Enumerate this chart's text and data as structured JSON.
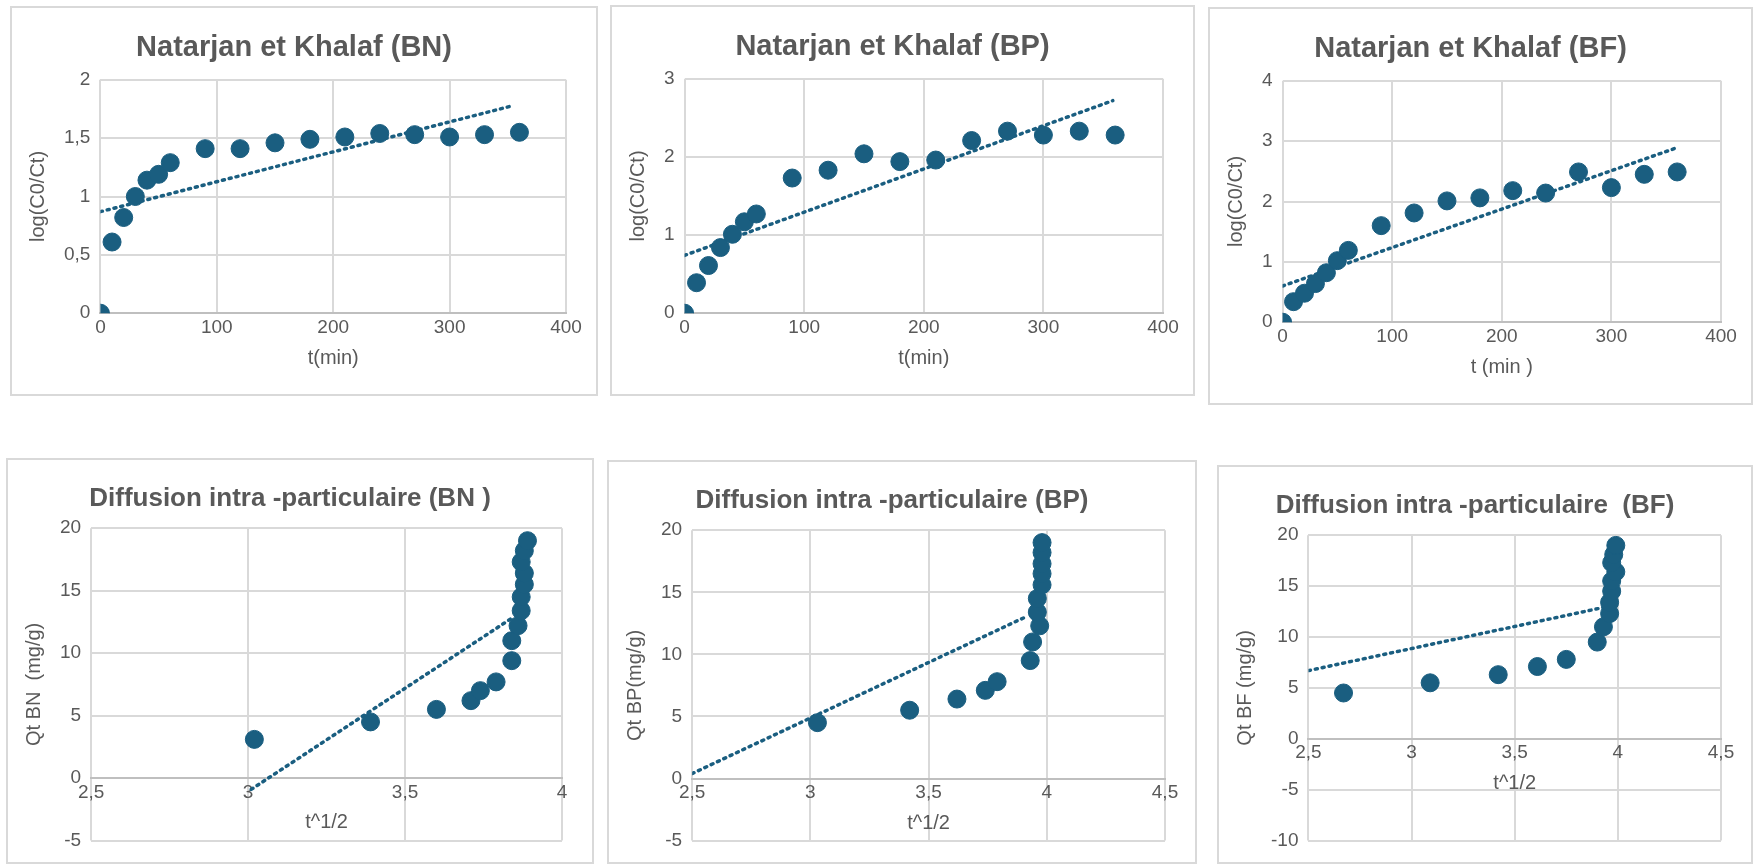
{
  "chart_data": [
    {
      "type": "scatter",
      "title": "Natarjan et Khalaf (BN)",
      "xlabel": "t(min)",
      "ylabel": "log(C0/Ct)",
      "xlim": [
        0,
        400
      ],
      "xticks": [
        0,
        100,
        200,
        300,
        400
      ],
      "ylim": [
        0,
        2
      ],
      "yticks": [
        0,
        {
          "value": 0.5,
          "label": "0,5"
        },
        1,
        {
          "value": 1.5,
          "label": "1,5"
        },
        2
      ],
      "grid": true,
      "series": [
        {
          "marker": "circle",
          "color": "#1a5e80",
          "x": [
            0,
            10,
            20,
            30,
            40,
            50,
            60,
            90,
            120,
            150,
            180,
            210,
            240,
            270,
            300,
            330,
            360
          ],
          "values": [
            0,
            0.61,
            0.82,
            1.0,
            1.14,
            1.19,
            1.29,
            1.41,
            1.41,
            1.46,
            1.49,
            1.51,
            1.54,
            1.53,
            1.51,
            1.53,
            1.55
          ]
        },
        {
          "type": "line",
          "marker": "none",
          "color": "#1a5e80",
          "line_style": "dotted",
          "x": [
            0,
            355
          ],
          "values": [
            0.87,
            1.78
          ]
        }
      ]
    },
    {
      "type": "scatter",
      "title": "Natarjan et Khalaf (BP)",
      "xlabel": "t(min)",
      "ylabel": "log(C0/Ct)",
      "xlim": [
        0,
        400
      ],
      "xticks": [
        0,
        100,
        200,
        300,
        400
      ],
      "ylim": [
        0,
        3
      ],
      "yticks": [
        0,
        1,
        2,
        3
      ],
      "grid": true,
      "series": [
        {
          "marker": "circle",
          "color": "#1a5e80",
          "x": [
            0,
            10,
            20,
            30,
            40,
            50,
            60,
            90,
            120,
            150,
            180,
            210,
            240,
            270,
            300,
            330,
            360
          ],
          "values": [
            0,
            0.39,
            0.61,
            0.84,
            1.01,
            1.17,
            1.27,
            1.73,
            1.83,
            2.04,
            1.94,
            1.96,
            2.21,
            2.33,
            2.28,
            2.33,
            2.28
          ]
        },
        {
          "type": "line",
          "marker": "none",
          "color": "#1a5e80",
          "line_style": "dotted",
          "x": [
            0,
            358
          ],
          "values": [
            0.74,
            2.72
          ]
        }
      ]
    },
    {
      "type": "scatter",
      "title": "Natarjan et Khalaf (BF)",
      "xlabel": "t (min )",
      "ylabel": "log(C0/Ct)",
      "xlim": [
        0,
        400
      ],
      "xticks": [
        0,
        100,
        200,
        300,
        400
      ],
      "ylim": [
        0,
        4
      ],
      "yticks": [
        0,
        1,
        2,
        3,
        4
      ],
      "grid": true,
      "series": [
        {
          "marker": "circle",
          "color": "#1a5e80",
          "x": [
            0,
            10,
            20,
            30,
            40,
            50,
            60,
            90,
            120,
            150,
            180,
            210,
            240,
            270,
            300,
            330,
            360
          ],
          "values": [
            0,
            0.34,
            0.48,
            0.64,
            0.82,
            1.02,
            1.19,
            1.6,
            1.81,
            2.01,
            2.06,
            2.18,
            2.14,
            2.49,
            2.23,
            2.45,
            2.49
          ]
        },
        {
          "type": "line",
          "marker": "none",
          "color": "#1a5e80",
          "line_style": "dotted",
          "x": [
            0,
            358
          ],
          "values": [
            0.6,
            2.88
          ]
        }
      ]
    },
    {
      "type": "scatter",
      "title": "Diffusion intra -particulaire (BN )",
      "xlabel": "t^1/2",
      "ylabel": "Qt BN  (mg/g)",
      "xlim": [
        2.5,
        4
      ],
      "xticks": [
        {
          "value": 2.5,
          "label": "2,5"
        },
        3,
        {
          "value": 3.5,
          "label": "3,5"
        },
        4
      ],
      "ylim": [
        -5,
        20
      ],
      "yticks": [
        -5,
        0,
        5,
        10,
        15,
        20
      ],
      "grid": true,
      "series": [
        {
          "marker": "circle",
          "color": "#1a5e80",
          "x": [
            3.02,
            3.39,
            3.6,
            3.71,
            3.74,
            3.79,
            3.84,
            3.84,
            3.86,
            3.87,
            3.87,
            3.88,
            3.88,
            3.87,
            3.88,
            3.89
          ],
          "values": [
            3.1,
            4.5,
            5.5,
            6.2,
            7.0,
            7.7,
            9.4,
            11.0,
            12.2,
            13.4,
            14.5,
            15.5,
            16.4,
            17.3,
            18.2,
            19.0
          ]
        },
        {
          "type": "line",
          "marker": "none",
          "color": "#1a5e80",
          "line_style": "dotted",
          "x": [
            3.01,
            3.84
          ],
          "values": [
            -0.9,
            12.8
          ]
        }
      ]
    },
    {
      "type": "scatter",
      "title": "Diffusion intra -particulaire (BP)",
      "xlabel": "t^1/2",
      "ylabel": "Qt BP(mg/g)",
      "xlim": [
        2.5,
        4.5
      ],
      "xticks": [
        {
          "value": 2.5,
          "label": "2,5"
        },
        3,
        {
          "value": 3.5,
          "label": "3,5"
        },
        4,
        {
          "value": 4.5,
          "label": "4,5"
        }
      ],
      "ylim": [
        -5,
        20
      ],
      "yticks": [
        -5,
        0,
        5,
        10,
        15,
        20
      ],
      "grid": true,
      "series": [
        {
          "marker": "circle",
          "color": "#1a5e80",
          "x": [
            3.03,
            3.42,
            3.62,
            3.74,
            3.79,
            3.93,
            3.94,
            3.97,
            3.96,
            3.96,
            3.98,
            3.98,
            3.98,
            3.98,
            3.98
          ],
          "values": [
            4.5,
            5.5,
            6.4,
            7.1,
            7.8,
            9.5,
            11.0,
            12.3,
            13.4,
            14.5,
            15.6,
            16.5,
            17.3,
            18.2,
            19.0
          ]
        },
        {
          "type": "line",
          "marker": "none",
          "color": "#1a5e80",
          "line_style": "dotted",
          "x": [
            2.5,
            3.92
          ],
          "values": [
            0.4,
            13.1
          ]
        }
      ]
    },
    {
      "type": "scatter",
      "title": "Diffusion intra -particulaire  (BF)",
      "xlabel": "t^1/2",
      "ylabel": "Qt BF (mg/g)",
      "xlim": [
        2.5,
        4.5
      ],
      "xticks": [
        {
          "value": 2.5,
          "label": "2,5"
        },
        3,
        {
          "value": 3.5,
          "label": "3,5"
        },
        4,
        {
          "value": 4.5,
          "label": "4,5"
        }
      ],
      "ylim": [
        -10,
        20
      ],
      "yticks": [
        -10,
        -5,
        0,
        5,
        10,
        15,
        20
      ],
      "grid": true,
      "series": [
        {
          "marker": "circle",
          "color": "#1a5e80",
          "x": [
            2.67,
            3.09,
            3.42,
            3.61,
            3.75,
            3.9,
            3.93,
            3.96,
            3.96,
            3.97,
            3.97,
            3.99,
            3.97,
            3.98,
            3.99
          ],
          "values": [
            4.5,
            5.5,
            6.3,
            7.1,
            7.8,
            9.5,
            11.0,
            12.3,
            13.4,
            14.5,
            15.5,
            16.4,
            17.3,
            18.1,
            19.0
          ]
        },
        {
          "type": "line",
          "marker": "none",
          "color": "#1a5e80",
          "line_style": "dotted",
          "x": [
            2.5,
            3.93
          ],
          "values": [
            6.7,
            12.9
          ]
        }
      ]
    }
  ]
}
